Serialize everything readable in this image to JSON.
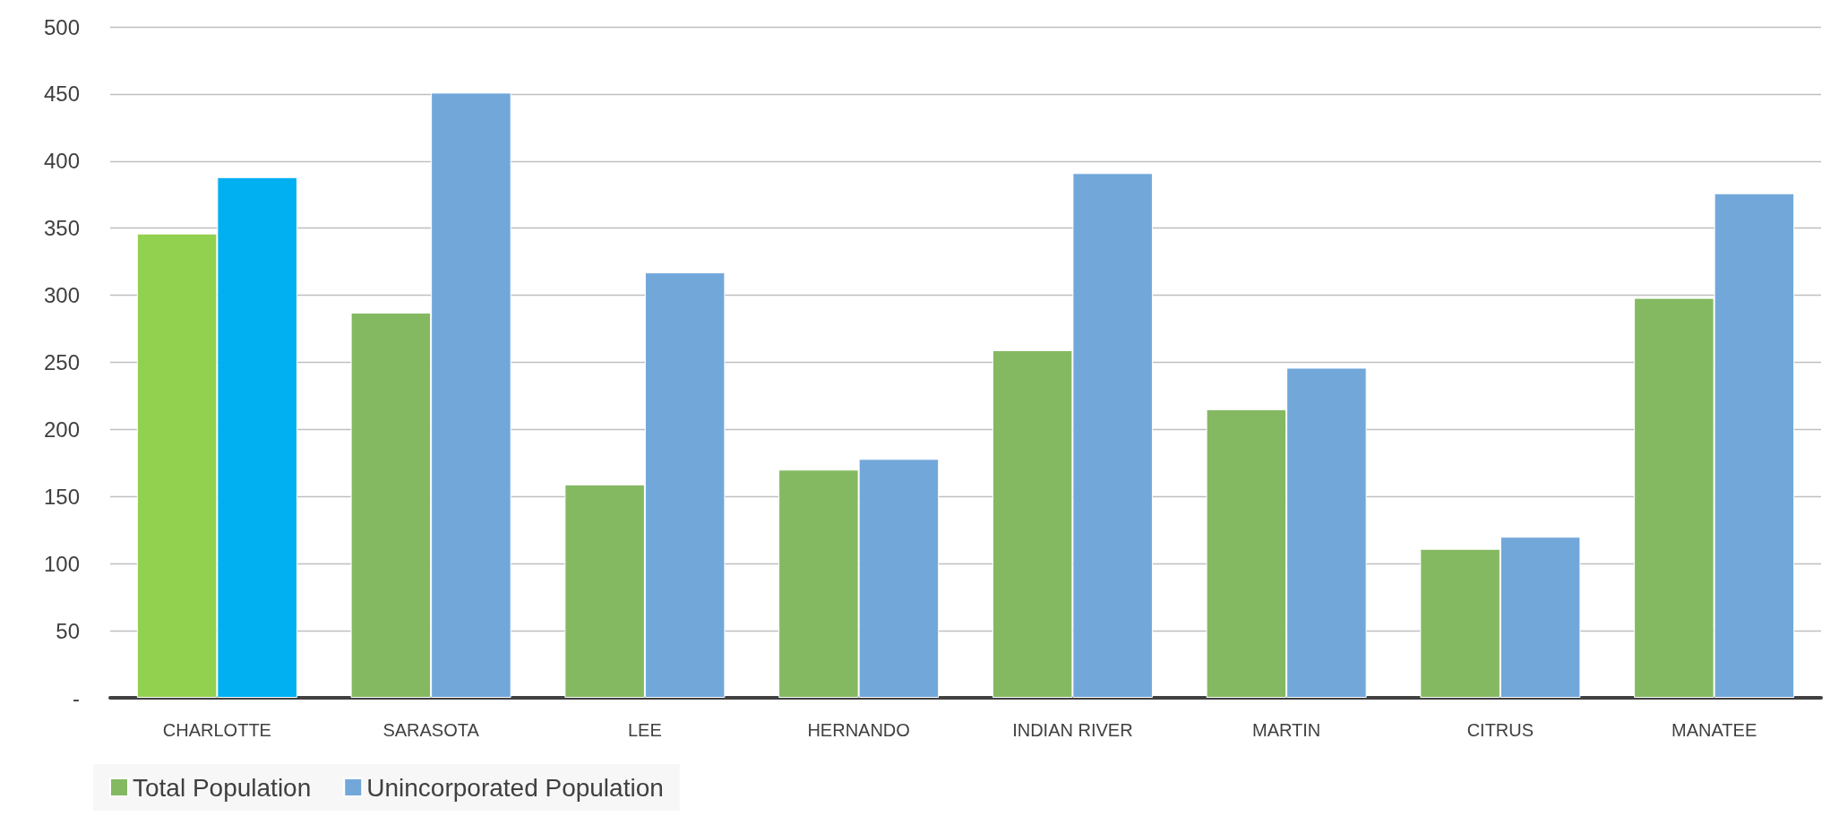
{
  "chart_data": {
    "type": "bar",
    "categories": [
      "CHARLOTTE",
      "SARASOTA",
      "LEE",
      "HERNANDO",
      "INDIAN RIVER",
      "MARTIN",
      "CITRUS",
      "MANATEE"
    ],
    "series": [
      {
        "name": "Total Population",
        "color": "#84b962",
        "colors": [
          "#92d050",
          "#84b962",
          "#84b962",
          "#84b962",
          "#84b962",
          "#84b962",
          "#84b962",
          "#84b962"
        ],
        "values": [
          346,
          287,
          159,
          170,
          259,
          215,
          111,
          298
        ]
      },
      {
        "name": "Unincorporated Population",
        "color": "#72a7da",
        "colors": [
          "#00b0f0",
          "#72a7da",
          "#72a7da",
          "#72a7da",
          "#72a7da",
          "#72a7da",
          "#72a7da",
          "#72a7da"
        ],
        "values": [
          388,
          451,
          317,
          178,
          391,
          246,
          120,
          376
        ]
      }
    ],
    "ylim": [
      0,
      500
    ],
    "yticks": [
      {
        "value": 0,
        "label": "-"
      },
      50,
      100,
      150,
      200,
      250,
      300,
      350,
      400,
      450,
      500
    ],
    "grid": "y",
    "legend": "bottom left"
  }
}
